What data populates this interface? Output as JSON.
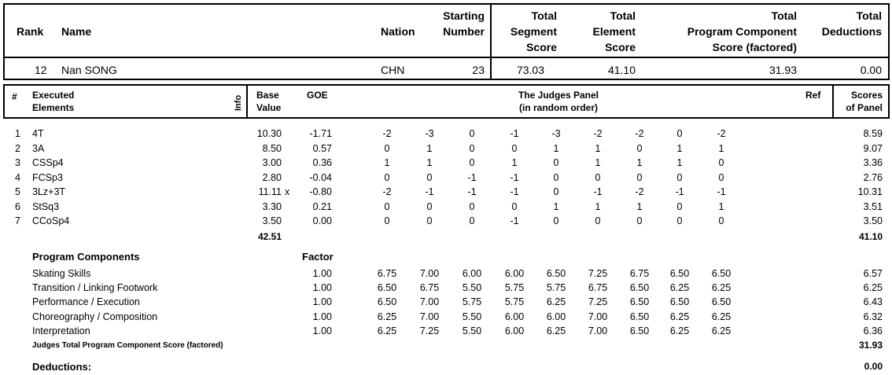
{
  "summary_header": {
    "rank": "Rank",
    "name": "Name",
    "nation": "Nation",
    "starting_number": [
      "Starting",
      "Number"
    ],
    "total_segment_score": [
      "Total",
      "Segment",
      "Score"
    ],
    "total_element_score": [
      "Total",
      "Element",
      "Score"
    ],
    "total_pcs": [
      "Total",
      "Program  Component",
      "Score (factored)"
    ],
    "total_deductions": [
      "Total",
      "Deductions"
    ]
  },
  "skater": {
    "rank": "12",
    "name": "Nan SONG",
    "nation": "CHN",
    "starting_number": "23",
    "total_segment_score": "73.03",
    "total_element_score": "41.10",
    "total_pcs": "31.93",
    "total_deductions": "0.00"
  },
  "elements_header": {
    "num": "#",
    "executed_elements": [
      "Executed",
      "Elements"
    ],
    "info": "Info",
    "base_value": [
      "Base",
      "Value"
    ],
    "goe": "GOE",
    "judges_panel": [
      "The Judges Panel",
      "(in random order)"
    ],
    "ref": "Ref",
    "scores_of_panel": [
      "Scores",
      "of Panel"
    ]
  },
  "elements": [
    {
      "num": "1",
      "name": "4T",
      "info": "",
      "base": "10.30",
      "goe": "-1.71",
      "judges": [
        "-2",
        "-3",
        "0",
        "-1",
        "-3",
        "-2",
        "-2",
        "0",
        "-2"
      ],
      "score": "8.59"
    },
    {
      "num": "2",
      "name": "3A",
      "info": "",
      "base": "8.50",
      "goe": "0.57",
      "judges": [
        "0",
        "1",
        "0",
        "0",
        "1",
        "1",
        "0",
        "1",
        "1"
      ],
      "score": "9.07"
    },
    {
      "num": "3",
      "name": "CSSp4",
      "info": "",
      "base": "3.00",
      "goe": "0.36",
      "judges": [
        "1",
        "1",
        "0",
        "1",
        "0",
        "1",
        "1",
        "1",
        "0"
      ],
      "score": "3.36"
    },
    {
      "num": "4",
      "name": "FCSp3",
      "info": "",
      "base": "2.80",
      "goe": "-0.04",
      "judges": [
        "0",
        "0",
        "-1",
        "-1",
        "0",
        "0",
        "0",
        "0",
        "0"
      ],
      "score": "2.76"
    },
    {
      "num": "5",
      "name": "3Lz+3T",
      "info": "x",
      "base": "11.11",
      "goe": "-0.80",
      "judges": [
        "-2",
        "-1",
        "-1",
        "-1",
        "0",
        "-1",
        "-2",
        "-1",
        "-1"
      ],
      "score": "10.31"
    },
    {
      "num": "6",
      "name": "StSq3",
      "info": "",
      "base": "3.30",
      "goe": "0.21",
      "judges": [
        "0",
        "0",
        "0",
        "0",
        "1",
        "1",
        "1",
        "0",
        "1"
      ],
      "score": "3.51"
    },
    {
      "num": "7",
      "name": "CCoSp4",
      "info": "",
      "base": "3.50",
      "goe": "0.00",
      "judges": [
        "0",
        "0",
        "0",
        "-1",
        "0",
        "0",
        "0",
        "0",
        "0"
      ],
      "score": "3.50"
    }
  ],
  "elements_total": {
    "base": "42.51",
    "score": "41.10"
  },
  "program_components": {
    "title": "Program Components",
    "factor_label": "Factor",
    "items": [
      {
        "name": "Skating Skills",
        "factor": "1.00",
        "judges": [
          "6.75",
          "7.00",
          "6.00",
          "6.00",
          "6.50",
          "7.25",
          "6.75",
          "6.50",
          "6.50"
        ],
        "score": "6.57"
      },
      {
        "name": "Transition / Linking Footwork",
        "factor": "1.00",
        "judges": [
          "6.50",
          "6.75",
          "5.50",
          "5.75",
          "5.75",
          "6.75",
          "6.50",
          "6.25",
          "6.25"
        ],
        "score": "6.25"
      },
      {
        "name": "Performance / Execution",
        "factor": "1.00",
        "judges": [
          "6.50",
          "7.00",
          "5.75",
          "5.75",
          "6.25",
          "7.25",
          "6.50",
          "6.50",
          "6.50"
        ],
        "score": "6.43"
      },
      {
        "name": "Choreography / Composition",
        "factor": "1.00",
        "judges": [
          "6.25",
          "7.00",
          "5.50",
          "6.00",
          "6.00",
          "7.00",
          "6.50",
          "6.25",
          "6.25"
        ],
        "score": "6.32"
      },
      {
        "name": "Interpretation",
        "factor": "1.00",
        "judges": [
          "6.25",
          "7.25",
          "5.50",
          "6.00",
          "6.25",
          "7.00",
          "6.50",
          "6.25",
          "6.25"
        ],
        "score": "6.36"
      }
    ],
    "total_label": "Judges Total Program Component Score (factored)",
    "total": "31.93"
  },
  "deductions": {
    "label": "Deductions:",
    "value": "0.00"
  }
}
